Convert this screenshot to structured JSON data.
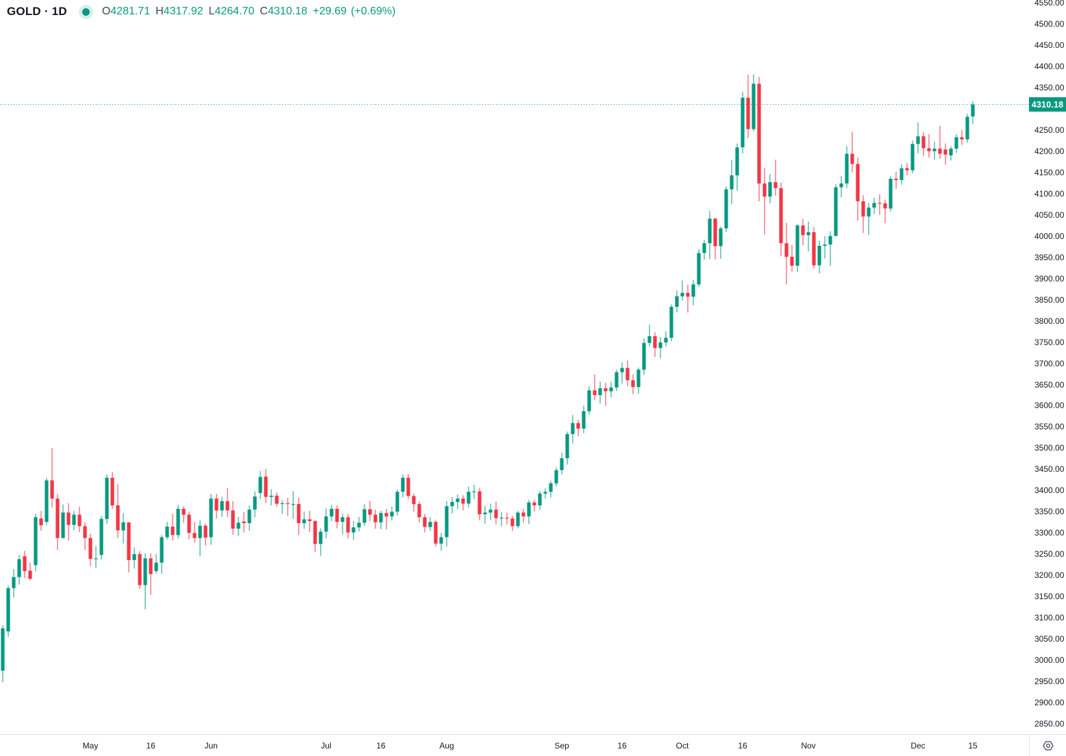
{
  "header": {
    "symbol": "GOLD",
    "separator": "·",
    "timeframe": "1D",
    "ohlc": {
      "open_label": "O",
      "open": "4281.71",
      "high_label": "H",
      "high": "4317.92",
      "low_label": "L",
      "low": "4264.70",
      "close_label": "C",
      "close": "4310.18"
    },
    "change": "+29.69",
    "change_pct": "(+0.69%)"
  },
  "icons": {
    "source_dot": "teal-status-dot",
    "bottom_right": "settings-gear"
  },
  "colors": {
    "up": "#089981",
    "down": "#F23645",
    "text": "#131722",
    "axis_border": "#e0e3eb",
    "last_price_line": "#089981",
    "badge_bg": "#089981",
    "badge_text": "#ffffff"
  },
  "price_badge": {
    "label": "4310.18"
  },
  "chart_data": {
    "type": "candlestick",
    "title": "GOLD · 1D",
    "symbol": "GOLD",
    "timeframe": "1D",
    "grid": false,
    "legend_position": "none",
    "y_axis": {
      "min": 2850,
      "max": 4550,
      "step": 50,
      "decimals": 2,
      "side": "right"
    },
    "last_price": 4310.18,
    "x_ticks": [
      {
        "label": "May",
        "index": 16
      },
      {
        "label": "16",
        "index": 27
      },
      {
        "label": "Jun",
        "index": 38
      },
      {
        "label": "Jul",
        "index": 59
      },
      {
        "label": "16",
        "index": 69
      },
      {
        "label": "Aug",
        "index": 81
      },
      {
        "label": "Sep",
        "index": 102
      },
      {
        "label": "16",
        "index": 113
      },
      {
        "label": "Oct",
        "index": 124
      },
      {
        "label": "16",
        "index": 135
      },
      {
        "label": "Nov",
        "index": 147
      },
      {
        "label": "Dec",
        "index": 167
      },
      {
        "label": "15",
        "index": 177
      }
    ],
    "candles_format": [
      "date",
      "open",
      "high",
      "low",
      "close"
    ],
    "candles": [
      [
        "2025-04-08",
        2975,
        3082,
        2948,
        3075
      ],
      [
        "2025-04-09",
        3068,
        3176,
        3055,
        3170
      ],
      [
        "2025-04-10",
        3170,
        3215,
        3148,
        3196
      ],
      [
        "2025-04-11",
        3196,
        3248,
        3178,
        3238
      ],
      [
        "2025-04-14",
        3245,
        3258,
        3193,
        3210
      ],
      [
        "2025-04-15",
        3211,
        3230,
        3188,
        3192
      ],
      [
        "2025-04-16",
        3224,
        3345,
        3210,
        3337
      ],
      [
        "2025-04-17",
        3334,
        3352,
        3305,
        3318
      ],
      [
        "2025-04-21",
        3326,
        3430,
        3318,
        3424
      ],
      [
        "2025-04-22",
        3424,
        3500,
        3360,
        3381
      ],
      [
        "2025-04-23",
        3381,
        3392,
        3260,
        3288
      ],
      [
        "2025-04-24",
        3288,
        3367,
        3287,
        3348
      ],
      [
        "2025-04-25",
        3348,
        3370,
        3282,
        3319
      ],
      [
        "2025-04-28",
        3319,
        3352,
        3306,
        3343
      ],
      [
        "2025-04-29",
        3343,
        3362,
        3302,
        3316
      ],
      [
        "2025-04-30",
        3316,
        3325,
        3260,
        3288
      ],
      [
        "2025-05-01",
        3288,
        3298,
        3222,
        3239
      ],
      [
        "2025-05-02",
        3239,
        3269,
        3217,
        3240
      ],
      [
        "2025-05-05",
        3248,
        3340,
        3237,
        3333
      ],
      [
        "2025-05-06",
        3333,
        3438,
        3322,
        3430
      ],
      [
        "2025-05-07",
        3430,
        3444,
        3357,
        3365
      ],
      [
        "2025-05-08",
        3365,
        3415,
        3288,
        3306
      ],
      [
        "2025-05-09",
        3306,
        3347,
        3275,
        3325
      ],
      [
        "2025-05-12",
        3325,
        3325,
        3207,
        3236
      ],
      [
        "2025-05-13",
        3236,
        3266,
        3216,
        3250
      ],
      [
        "2025-05-14",
        3250,
        3257,
        3168,
        3177
      ],
      [
        "2025-05-15",
        3177,
        3252,
        3120,
        3240
      ],
      [
        "2025-05-16",
        3240,
        3252,
        3154,
        3203
      ],
      [
        "2025-05-19",
        3210,
        3250,
        3204,
        3230
      ],
      [
        "2025-05-20",
        3230,
        3295,
        3204,
        3290
      ],
      [
        "2025-05-21",
        3290,
        3326,
        3285,
        3315
      ],
      [
        "2025-05-22",
        3315,
        3345,
        3282,
        3295
      ],
      [
        "2025-05-23",
        3295,
        3366,
        3287,
        3357
      ],
      [
        "2025-05-26",
        3357,
        3363,
        3324,
        3343
      ],
      [
        "2025-05-27",
        3343,
        3350,
        3285,
        3300
      ],
      [
        "2025-05-28",
        3300,
        3325,
        3277,
        3288
      ],
      [
        "2025-05-29",
        3288,
        3330,
        3245,
        3317
      ],
      [
        "2025-05-30",
        3317,
        3322,
        3270,
        3289
      ],
      [
        "2025-06-02",
        3290,
        3392,
        3272,
        3381
      ],
      [
        "2025-06-03",
        3381,
        3392,
        3334,
        3353
      ],
      [
        "2025-06-04",
        3353,
        3385,
        3338,
        3375
      ],
      [
        "2025-06-05",
        3375,
        3406,
        3337,
        3353
      ],
      [
        "2025-06-06",
        3353,
        3375,
        3296,
        3310
      ],
      [
        "2025-06-09",
        3310,
        3338,
        3293,
        3324
      ],
      [
        "2025-06-10",
        3327,
        3349,
        3301,
        3323
      ],
      [
        "2025-06-11",
        3323,
        3365,
        3305,
        3355
      ],
      [
        "2025-06-12",
        3355,
        3398,
        3337,
        3386
      ],
      [
        "2025-06-13",
        3394,
        3446,
        3380,
        3432
      ],
      [
        "2025-06-16",
        3433,
        3451,
        3370,
        3385
      ],
      [
        "2025-06-17",
        3385,
        3403,
        3365,
        3388
      ],
      [
        "2025-06-18",
        3388,
        3396,
        3362,
        3369
      ],
      [
        "2025-06-19",
        3369,
        3377,
        3345,
        3370
      ],
      [
        "2025-06-20",
        3370,
        3383,
        3340,
        3368
      ],
      [
        "2025-06-23",
        3368,
        3398,
        3333,
        3368
      ],
      [
        "2025-06-24",
        3368,
        3383,
        3295,
        3323
      ],
      [
        "2025-06-25",
        3323,
        3350,
        3310,
        3332
      ],
      [
        "2025-06-26",
        3332,
        3352,
        3302,
        3328
      ],
      [
        "2025-06-27",
        3328,
        3330,
        3255,
        3274
      ],
      [
        "2025-06-30",
        3274,
        3311,
        3246,
        3303
      ],
      [
        "2025-07-01",
        3303,
        3358,
        3287,
        3339
      ],
      [
        "2025-07-02",
        3339,
        3366,
        3328,
        3357
      ],
      [
        "2025-07-03",
        3357,
        3365,
        3311,
        3326
      ],
      [
        "2025-07-07",
        3326,
        3345,
        3297,
        3337
      ],
      [
        "2025-07-08",
        3337,
        3345,
        3287,
        3301
      ],
      [
        "2025-07-09",
        3301,
        3328,
        3283,
        3313
      ],
      [
        "2025-07-10",
        3313,
        3338,
        3303,
        3324
      ],
      [
        "2025-07-11",
        3324,
        3368,
        3316,
        3356
      ],
      [
        "2025-07-14",
        3356,
        3375,
        3328,
        3343
      ],
      [
        "2025-07-15",
        3343,
        3355,
        3310,
        3325
      ],
      [
        "2025-07-16",
        3325,
        3352,
        3309,
        3347
      ],
      [
        "2025-07-17",
        3347,
        3357,
        3309,
        3339
      ],
      [
        "2025-07-18",
        3339,
        3362,
        3329,
        3350
      ],
      [
        "2025-07-21",
        3350,
        3402,
        3341,
        3397
      ],
      [
        "2025-07-22",
        3397,
        3438,
        3384,
        3430
      ],
      [
        "2025-07-23",
        3430,
        3439,
        3380,
        3387
      ],
      [
        "2025-07-24",
        3387,
        3393,
        3350,
        3368
      ],
      [
        "2025-07-25",
        3368,
        3374,
        3324,
        3337
      ],
      [
        "2025-07-28",
        3337,
        3345,
        3301,
        3314
      ],
      [
        "2025-07-29",
        3314,
        3337,
        3305,
        3326
      ],
      [
        "2025-07-30",
        3326,
        3330,
        3268,
        3275
      ],
      [
        "2025-07-31",
        3275,
        3300,
        3258,
        3290
      ],
      [
        "2025-08-01",
        3290,
        3375,
        3268,
        3363
      ],
      [
        "2025-08-04",
        3363,
        3385,
        3346,
        3373
      ],
      [
        "2025-08-05",
        3373,
        3391,
        3356,
        3381
      ],
      [
        "2025-08-06",
        3381,
        3389,
        3353,
        3369
      ],
      [
        "2025-08-07",
        3369,
        3409,
        3360,
        3397
      ],
      [
        "2025-08-08",
        3397,
        3414,
        3380,
        3398
      ],
      [
        "2025-08-11",
        3398,
        3406,
        3330,
        3344
      ],
      [
        "2025-08-12",
        3344,
        3364,
        3322,
        3348
      ],
      [
        "2025-08-13",
        3348,
        3369,
        3331,
        3355
      ],
      [
        "2025-08-14",
        3355,
        3374,
        3320,
        3335
      ],
      [
        "2025-08-15",
        3335,
        3349,
        3316,
        3336
      ],
      [
        "2025-08-18",
        3336,
        3348,
        3320,
        3334
      ],
      [
        "2025-08-19",
        3334,
        3340,
        3305,
        3316
      ],
      [
        "2025-08-20",
        3316,
        3352,
        3311,
        3348
      ],
      [
        "2025-08-21",
        3348,
        3357,
        3324,
        3339
      ],
      [
        "2025-08-22",
        3339,
        3378,
        3321,
        3372
      ],
      [
        "2025-08-25",
        3372,
        3378,
        3350,
        3365
      ],
      [
        "2025-08-26",
        3365,
        3399,
        3354,
        3393
      ],
      [
        "2025-08-27",
        3393,
        3405,
        3381,
        3397
      ],
      [
        "2025-08-28",
        3397,
        3423,
        3384,
        3417
      ],
      [
        "2025-08-29",
        3417,
        3454,
        3410,
        3448
      ],
      [
        "2025-09-01",
        3448,
        3489,
        3438,
        3476
      ],
      [
        "2025-09-02",
        3476,
        3539,
        3461,
        3533
      ],
      [
        "2025-09-03",
        3533,
        3578,
        3511,
        3559
      ],
      [
        "2025-09-04",
        3559,
        3567,
        3528,
        3546
      ],
      [
        "2025-09-05",
        3546,
        3600,
        3535,
        3587
      ],
      [
        "2025-09-08",
        3587,
        3646,
        3579,
        3636
      ],
      [
        "2025-09-09",
        3636,
        3674,
        3613,
        3625
      ],
      [
        "2025-09-10",
        3625,
        3657,
        3605,
        3641
      ],
      [
        "2025-09-11",
        3641,
        3654,
        3600,
        3634
      ],
      [
        "2025-09-12",
        3634,
        3656,
        3620,
        3643
      ],
      [
        "2025-09-15",
        3643,
        3685,
        3635,
        3679
      ],
      [
        "2025-09-16",
        3679,
        3702,
        3652,
        3689
      ],
      [
        "2025-09-17",
        3689,
        3707,
        3646,
        3660
      ],
      [
        "2025-09-18",
        3660,
        3674,
        3627,
        3644
      ],
      [
        "2025-09-19",
        3644,
        3690,
        3628,
        3685
      ],
      [
        "2025-09-22",
        3685,
        3759,
        3672,
        3748
      ],
      [
        "2025-09-23",
        3748,
        3791,
        3740,
        3764
      ],
      [
        "2025-09-24",
        3764,
        3773,
        3715,
        3736
      ],
      [
        "2025-09-25",
        3736,
        3762,
        3712,
        3749
      ],
      [
        "2025-09-26",
        3749,
        3775,
        3739,
        3760
      ],
      [
        "2025-09-29",
        3760,
        3839,
        3752,
        3833
      ],
      [
        "2025-09-30",
        3833,
        3872,
        3820,
        3858
      ],
      [
        "2025-10-01",
        3858,
        3895,
        3848,
        3866
      ],
      [
        "2025-10-02",
        3866,
        3885,
        3820,
        3857
      ],
      [
        "2025-10-03",
        3857,
        3897,
        3837,
        3886
      ],
      [
        "2025-10-06",
        3886,
        3969,
        3880,
        3960
      ],
      [
        "2025-10-07",
        3960,
        3991,
        3944,
        3983
      ],
      [
        "2025-10-08",
        3983,
        4059,
        3946,
        4041
      ],
      [
        "2025-10-09",
        4041,
        4043,
        3945,
        3976
      ],
      [
        "2025-10-10",
        3976,
        4022,
        3946,
        4018
      ],
      [
        "2025-10-13",
        4018,
        4117,
        4009,
        4110
      ],
      [
        "2025-10-14",
        4110,
        4179,
        4075,
        4143
      ],
      [
        "2025-10-15",
        4143,
        4218,
        4107,
        4209
      ],
      [
        "2025-10-16",
        4209,
        4340,
        4195,
        4326
      ],
      [
        "2025-10-17",
        4326,
        4380,
        4231,
        4252
      ],
      [
        "2025-10-20",
        4252,
        4381,
        4247,
        4359
      ],
      [
        "2025-10-21",
        4359,
        4375,
        4082,
        4124
      ],
      [
        "2025-10-22",
        4124,
        4161,
        4004,
        4093
      ],
      [
        "2025-10-23",
        4093,
        4146,
        4077,
        4127
      ],
      [
        "2025-10-24",
        4127,
        4180,
        4095,
        4113
      ],
      [
        "2025-10-27",
        4113,
        4126,
        3952,
        3983
      ],
      [
        "2025-10-28",
        3983,
        4031,
        3886,
        3951
      ],
      [
        "2025-10-29",
        3951,
        3979,
        3916,
        3930
      ],
      [
        "2025-10-30",
        3930,
        4028,
        3915,
        4025
      ],
      [
        "2025-10-31",
        4025,
        4040,
        3978,
        4002
      ],
      [
        "2025-11-03",
        4002,
        4034,
        3964,
        4009
      ],
      [
        "2025-11-04",
        4009,
        4021,
        3923,
        3931
      ],
      [
        "2025-11-05",
        3931,
        3989,
        3912,
        3977
      ],
      [
        "2025-11-06",
        3977,
        4000,
        3947,
        3980
      ],
      [
        "2025-11-07",
        3980,
        4011,
        3930,
        4000
      ],
      [
        "2025-11-10",
        4000,
        4122,
        3999,
        4115
      ],
      [
        "2025-11-11",
        4115,
        4142,
        4091,
        4124
      ],
      [
        "2025-11-12",
        4124,
        4212,
        4113,
        4194
      ],
      [
        "2025-11-13",
        4194,
        4245,
        4150,
        4170
      ],
      [
        "2025-11-14",
        4170,
        4185,
        4036,
        4082
      ],
      [
        "2025-11-17",
        4082,
        4096,
        4007,
        4046
      ],
      [
        "2025-11-18",
        4046,
        4078,
        4002,
        4067
      ],
      [
        "2025-11-19",
        4067,
        4090,
        4052,
        4078
      ],
      [
        "2025-11-20",
        4078,
        4098,
        4050,
        4077
      ],
      [
        "2025-11-21",
        4077,
        4085,
        4030,
        4065
      ],
      [
        "2025-11-24",
        4065,
        4141,
        4058,
        4135
      ],
      [
        "2025-11-25",
        4135,
        4151,
        4111,
        4132
      ],
      [
        "2025-11-26",
        4132,
        4169,
        4121,
        4160
      ],
      [
        "2025-11-27",
        4160,
        4172,
        4143,
        4155
      ],
      [
        "2025-11-28",
        4155,
        4225,
        4148,
        4217
      ],
      [
        "2025-12-01",
        4217,
        4268,
        4195,
        4235
      ],
      [
        "2025-12-02",
        4235,
        4245,
        4188,
        4207
      ],
      [
        "2025-12-03",
        4207,
        4240,
        4185,
        4200
      ],
      [
        "2025-12-04",
        4200,
        4222,
        4180,
        4206
      ],
      [
        "2025-12-05",
        4206,
        4260,
        4182,
        4194
      ],
      [
        "2025-12-08",
        4204,
        4218,
        4168,
        4192
      ],
      [
        "2025-12-09",
        4190,
        4212,
        4178,
        4206
      ],
      [
        "2025-12-10",
        4206,
        4240,
        4196,
        4233
      ],
      [
        "2025-12-11",
        4233,
        4250,
        4215,
        4228
      ],
      [
        "2025-12-12",
        4228,
        4288,
        4220,
        4281
      ],
      [
        "2025-12-15",
        4281.71,
        4317.92,
        4264.7,
        4310.18
      ]
    ]
  }
}
